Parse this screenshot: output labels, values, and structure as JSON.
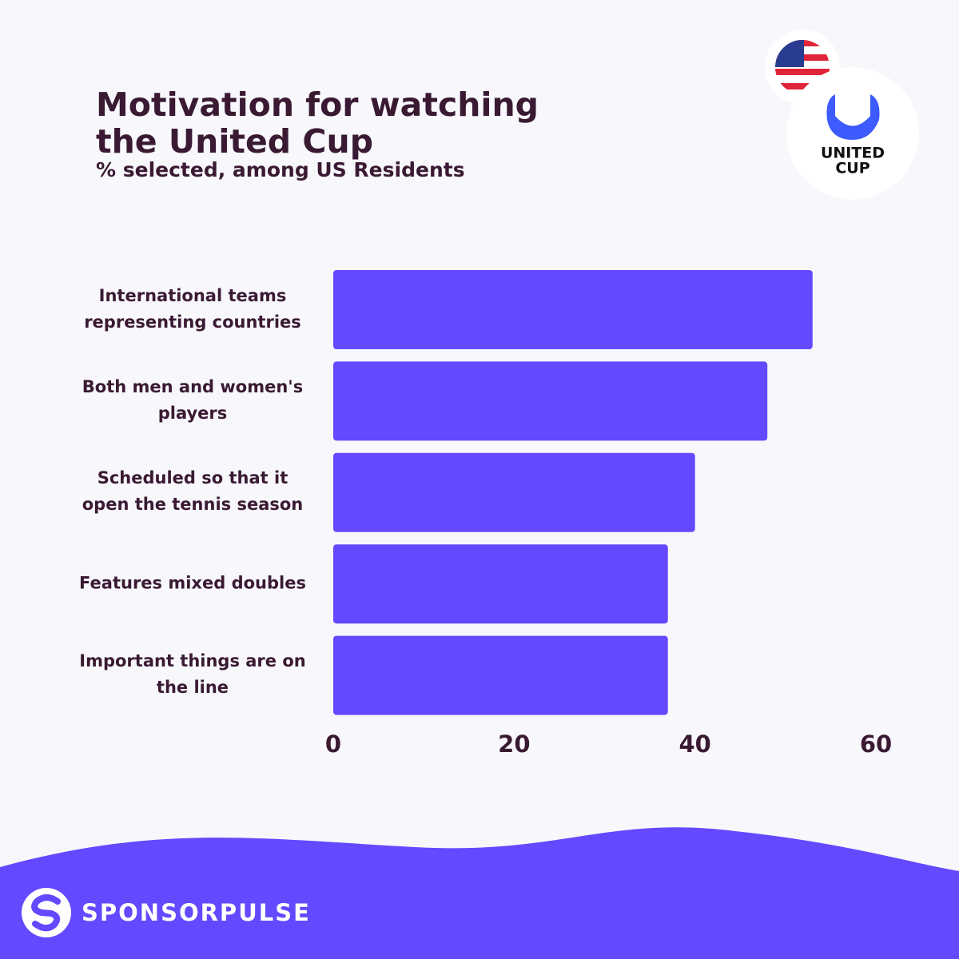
{
  "chart_data": {
    "type": "bar",
    "orientation": "horizontal",
    "title": "Motivation for watching the United Cup",
    "subtitle": "% selected, among US Residents",
    "categories": [
      "International teams representing countries",
      "Both men and women's players",
      "Scheduled so that it open the tennis season",
      "Features mixed doubles",
      "Important things are on the line"
    ],
    "values": [
      53,
      48,
      40,
      37,
      37
    ],
    "color": "#6349ff",
    "xlim": [
      0,
      60
    ],
    "xticks": [
      0,
      20,
      40,
      60
    ],
    "grid": false
  },
  "logo": {
    "line1": "UNITED",
    "line2": "CUP"
  },
  "footer": {
    "brand": "SPONSORPULSE"
  }
}
